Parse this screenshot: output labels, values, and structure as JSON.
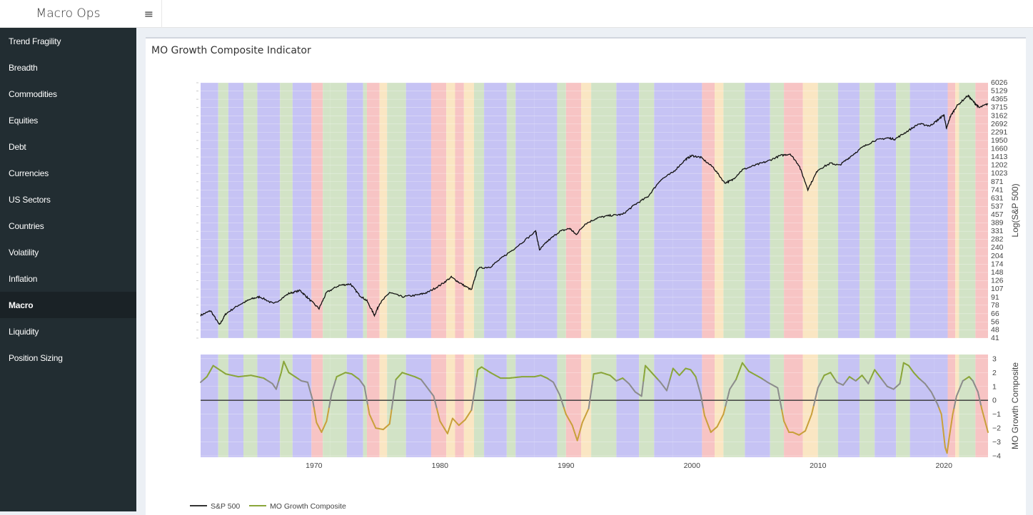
{
  "app": {
    "brand": "Macro Ops",
    "menu_icon": "hamburger-icon",
    "menu_glyph": "≡"
  },
  "sidebar": {
    "items": [
      {
        "label": "Trend Fragility",
        "active": false
      },
      {
        "label": "Breadth",
        "active": false
      },
      {
        "label": "Commodities",
        "active": false
      },
      {
        "label": "Equities",
        "active": false
      },
      {
        "label": "Debt",
        "active": false
      },
      {
        "label": "Currencies",
        "active": false
      },
      {
        "label": "US Sectors",
        "active": false
      },
      {
        "label": "Countries",
        "active": false
      },
      {
        "label": "Volatility",
        "active": false
      },
      {
        "label": "Inflation",
        "active": false
      },
      {
        "label": "Macro",
        "active": true
      },
      {
        "label": "Liquidity",
        "active": false
      },
      {
        "label": "Position Sizing",
        "active": false
      }
    ]
  },
  "panel": {
    "title": "MO Growth Composite Indicator"
  },
  "chart_data": {
    "type": "line",
    "x_range": [
      1961,
      2023.5
    ],
    "x_ticks": [
      1970,
      1980,
      1990,
      2000,
      2010,
      2020
    ],
    "colors": {
      "sp500": "#111111",
      "composite_above": "#8aa63a",
      "composite_below": "#c9a03b",
      "composite_mid": "#8c8c8c",
      "zero_line": "#333333",
      "gridline": "#e6e6e6"
    },
    "regime_colors": {
      "P": "#c6c3f4",
      "G": "#d2e3c6",
      "Y": "#fae6c3",
      "R": "#f7c4c4"
    },
    "regimes": [
      {
        "start": 1961.0,
        "end": 1962.4,
        "regime": "P"
      },
      {
        "start": 1962.4,
        "end": 1963.2,
        "regime": "G"
      },
      {
        "start": 1963.2,
        "end": 1964.4,
        "regime": "P"
      },
      {
        "start": 1964.4,
        "end": 1965.5,
        "regime": "G"
      },
      {
        "start": 1965.5,
        "end": 1967.3,
        "regime": "P"
      },
      {
        "start": 1967.3,
        "end": 1968.3,
        "regime": "G"
      },
      {
        "start": 1968.3,
        "end": 1969.8,
        "regime": "P"
      },
      {
        "start": 1969.8,
        "end": 1970.7,
        "regime": "R"
      },
      {
        "start": 1970.7,
        "end": 1971.3,
        "regime": "G"
      },
      {
        "start": 1971.3,
        "end": 1972.6,
        "regime": "G"
      },
      {
        "start": 1972.6,
        "end": 1973.9,
        "regime": "P"
      },
      {
        "start": 1973.9,
        "end": 1974.2,
        "regime": "G"
      },
      {
        "start": 1974.2,
        "end": 1975.2,
        "regime": "R"
      },
      {
        "start": 1975.2,
        "end": 1975.8,
        "regime": "Y"
      },
      {
        "start": 1975.8,
        "end": 1977.3,
        "regime": "G"
      },
      {
        "start": 1977.3,
        "end": 1979.3,
        "regime": "P"
      },
      {
        "start": 1979.3,
        "end": 1980.5,
        "regime": "R"
      },
      {
        "start": 1980.5,
        "end": 1981.2,
        "regime": "Y"
      },
      {
        "start": 1981.2,
        "end": 1981.9,
        "regime": "R"
      },
      {
        "start": 1981.9,
        "end": 1982.7,
        "regime": "Y"
      },
      {
        "start": 1982.7,
        "end": 1983.5,
        "regime": "G"
      },
      {
        "start": 1983.5,
        "end": 1985.3,
        "regime": "P"
      },
      {
        "start": 1985.3,
        "end": 1986.0,
        "regime": "G"
      },
      {
        "start": 1986.0,
        "end": 1987.5,
        "regime": "P"
      },
      {
        "start": 1987.5,
        "end": 1989.3,
        "regime": "P"
      },
      {
        "start": 1989.3,
        "end": 1990.0,
        "regime": "G"
      },
      {
        "start": 1990.0,
        "end": 1991.2,
        "regime": "R"
      },
      {
        "start": 1991.2,
        "end": 1992.0,
        "regime": "Y"
      },
      {
        "start": 1992.0,
        "end": 1994.0,
        "regime": "G"
      },
      {
        "start": 1994.0,
        "end": 1995.8,
        "regime": "P"
      },
      {
        "start": 1995.8,
        "end": 1997.0,
        "regime": "G"
      },
      {
        "start": 1997.0,
        "end": 1998.5,
        "regime": "P"
      },
      {
        "start": 1998.5,
        "end": 2000.8,
        "regime": "P"
      },
      {
        "start": 2000.8,
        "end": 2001.8,
        "regime": "R"
      },
      {
        "start": 2001.8,
        "end": 2002.5,
        "regime": "Y"
      },
      {
        "start": 2002.5,
        "end": 2004.2,
        "regime": "G"
      },
      {
        "start": 2004.2,
        "end": 2006.2,
        "regime": "P"
      },
      {
        "start": 2006.2,
        "end": 2007.3,
        "regime": "G"
      },
      {
        "start": 2007.3,
        "end": 2008.8,
        "regime": "R"
      },
      {
        "start": 2008.8,
        "end": 2010.0,
        "regime": "Y"
      },
      {
        "start": 2010.0,
        "end": 2011.6,
        "regime": "G"
      },
      {
        "start": 2011.6,
        "end": 2013.3,
        "regime": "P"
      },
      {
        "start": 2013.3,
        "end": 2014.5,
        "regime": "G"
      },
      {
        "start": 2014.5,
        "end": 2016.2,
        "regime": "P"
      },
      {
        "start": 2016.2,
        "end": 2017.3,
        "regime": "G"
      },
      {
        "start": 2017.3,
        "end": 2019.2,
        "regime": "P"
      },
      {
        "start": 2019.2,
        "end": 2020.3,
        "regime": "P"
      },
      {
        "start": 2020.3,
        "end": 2020.9,
        "regime": "R"
      },
      {
        "start": 2020.9,
        "end": 2021.2,
        "regime": "Y"
      },
      {
        "start": 2021.2,
        "end": 2022.5,
        "regime": "G"
      },
      {
        "start": 2022.5,
        "end": 2023.5,
        "regime": "R"
      }
    ],
    "sp500": {
      "name": "S&P 500",
      "ylabel": "Log(S&P 500)",
      "y_range": [
        41,
        6026
      ],
      "scale": "log",
      "y_ticks": [
        6026,
        5129,
        4365,
        3715,
        3162,
        2692,
        2291,
        1950,
        1660,
        1413,
        1202,
        1023,
        871,
        741,
        631,
        537,
        457,
        389,
        331,
        282,
        240,
        204,
        174,
        148,
        126,
        107,
        91,
        78,
        66,
        56,
        48,
        41
      ],
      "x": [
        1961.0,
        1961.8,
        1962.5,
        1963.0,
        1964.0,
        1965.0,
        1965.7,
        1966.8,
        1968.0,
        1968.9,
        1969.5,
        1970.4,
        1971.0,
        1972.0,
        1972.9,
        1973.6,
        1974.2,
        1974.8,
        1975.2,
        1976.0,
        1977.0,
        1978.2,
        1979.0,
        1980.0,
        1980.9,
        1981.6,
        1982.5,
        1983.0,
        1984.0,
        1985.0,
        1986.0,
        1987.6,
        1987.9,
        1988.5,
        1989.5,
        1990.3,
        1990.8,
        1991.5,
        1992.5,
        1993.5,
        1994.5,
        1995.5,
        1996.5,
        1997.5,
        1998.5,
        1999.5,
        2000.0,
        2000.7,
        2001.7,
        2002.6,
        2003.2,
        2004.0,
        2005.0,
        2006.0,
        2007.0,
        2007.8,
        2008.5,
        2009.2,
        2010.0,
        2011.0,
        2011.7,
        2012.5,
        2013.5,
        2014.5,
        2015.5,
        2016.1,
        2017.0,
        2018.0,
        2018.9,
        2019.5,
        2020.0,
        2020.2,
        2020.5,
        2021.0,
        2021.9,
        2022.4,
        2022.8,
        2023.5
      ],
      "values": [
        64,
        70,
        53,
        66,
        78,
        88,
        92,
        80,
        98,
        104,
        90,
        73,
        100,
        115,
        118,
        95,
        85,
        64,
        80,
        100,
        92,
        95,
        100,
        115,
        135,
        120,
        105,
        160,
        165,
        200,
        240,
        330,
        230,
        270,
        330,
        350,
        310,
        380,
        430,
        450,
        460,
        560,
        650,
        900,
        1050,
        1350,
        1450,
        1400,
        1150,
        850,
        900,
        1100,
        1200,
        1300,
        1450,
        1500,
        1200,
        750,
        1100,
        1250,
        1200,
        1400,
        1700,
        1950,
        2050,
        2000,
        2300,
        2700,
        2600,
        2900,
        3230,
        2450,
        3100,
        3800,
        4700,
        4100,
        3700,
        4000
      ]
    },
    "composite": {
      "name": "MO Growth Composite",
      "ylabel": "MO Growth Composite",
      "y_range": [
        -4.1,
        3.3
      ],
      "y_ticks": [
        3,
        2,
        1,
        0,
        -1,
        -2,
        -3,
        -4
      ],
      "x": [
        1961.0,
        1961.5,
        1962.0,
        1962.5,
        1963.0,
        1964.0,
        1965.0,
        1966.0,
        1966.7,
        1967.0,
        1967.4,
        1967.6,
        1968.0,
        1968.5,
        1969.0,
        1969.5,
        1969.9,
        1970.2,
        1970.6,
        1971.0,
        1971.4,
        1971.8,
        1972.5,
        1973.0,
        1973.6,
        1974.0,
        1974.4,
        1974.9,
        1975.5,
        1976.0,
        1976.5,
        1977.0,
        1978.0,
        1978.5,
        1979.0,
        1979.5,
        1980.0,
        1980.6,
        1981.0,
        1981.5,
        1982.0,
        1982.5,
        1983.0,
        1983.3,
        1984.0,
        1984.8,
        1985.5,
        1986.5,
        1987.5,
        1988.0,
        1988.5,
        1989.0,
        1989.5,
        1990.0,
        1990.5,
        1990.9,
        1991.3,
        1991.8,
        1992.2,
        1992.8,
        1993.5,
        1994.0,
        1994.5,
        1995.0,
        1995.5,
        1996.0,
        1996.3,
        1996.6,
        1997.0,
        1997.5,
        1998.0,
        1998.5,
        1999.0,
        1999.5,
        1999.9,
        2000.3,
        2000.7,
        2001.0,
        2001.5,
        2002.0,
        2002.5,
        2003.0,
        2003.5,
        2004.0,
        2004.5,
        2005.5,
        2006.0,
        2006.8,
        2007.3,
        2007.7,
        2008.0,
        2008.5,
        2009.0,
        2009.5,
        2010.0,
        2010.5,
        2011.0,
        2011.5,
        2012.0,
        2012.5,
        2013.0,
        2013.5,
        2014.0,
        2014.5,
        2015.0,
        2015.5,
        2016.0,
        2016.5,
        2016.8,
        2017.2,
        2017.6,
        2018.0,
        2018.5,
        2019.0,
        2019.5,
        2019.8,
        2020.1,
        2020.25,
        2020.4,
        2020.7,
        2021.0,
        2021.5,
        2022.0,
        2022.3,
        2022.7,
        2023.0,
        2023.5
      ],
      "values": [
        1.3,
        1.7,
        2.5,
        2.2,
        1.9,
        1.7,
        1.8,
        1.6,
        1.2,
        0.8,
        2.0,
        2.8,
        2.0,
        1.7,
        1.4,
        1.3,
        0.0,
        -1.6,
        -2.3,
        -1.5,
        0.5,
        1.7,
        2.0,
        1.9,
        1.5,
        1.0,
        -1.0,
        -2.0,
        -2.1,
        -1.7,
        1.5,
        2.0,
        1.7,
        1.5,
        0.9,
        0.3,
        -1.5,
        -2.4,
        -1.3,
        -1.8,
        -1.4,
        -0.7,
        2.2,
        2.4,
        2.0,
        1.6,
        1.6,
        1.7,
        1.7,
        1.8,
        1.6,
        1.3,
        0.4,
        -1.0,
        -1.8,
        -2.9,
        -1.6,
        -0.6,
        1.9,
        2.0,
        1.8,
        1.4,
        1.6,
        1.2,
        0.6,
        0.3,
        2.5,
        2.2,
        1.8,
        1.3,
        0.7,
        2.3,
        1.8,
        2.3,
        2.2,
        1.7,
        0.4,
        -1.1,
        -2.3,
        -1.9,
        -1.0,
        0.8,
        1.5,
        2.7,
        2.1,
        1.6,
        1.3,
        0.9,
        -1.5,
        -2.3,
        -2.3,
        -2.5,
        -2.2,
        -1.0,
        0.9,
        1.8,
        2.0,
        1.3,
        1.1,
        1.7,
        1.4,
        1.8,
        1.2,
        2.2,
        1.6,
        1.0,
        0.8,
        1.2,
        2.7,
        2.5,
        2.0,
        1.6,
        1.2,
        0.6,
        -0.3,
        -1.0,
        -3.4,
        -3.8,
        -2.8,
        -1.0,
        0.3,
        1.4,
        1.7,
        1.4,
        0.6,
        -0.6,
        -2.3
      ]
    },
    "legend": [
      {
        "name": "S&P 500",
        "color": "#333333"
      },
      {
        "name": "MO Growth Composite",
        "color": "#8aa63a"
      }
    ]
  }
}
